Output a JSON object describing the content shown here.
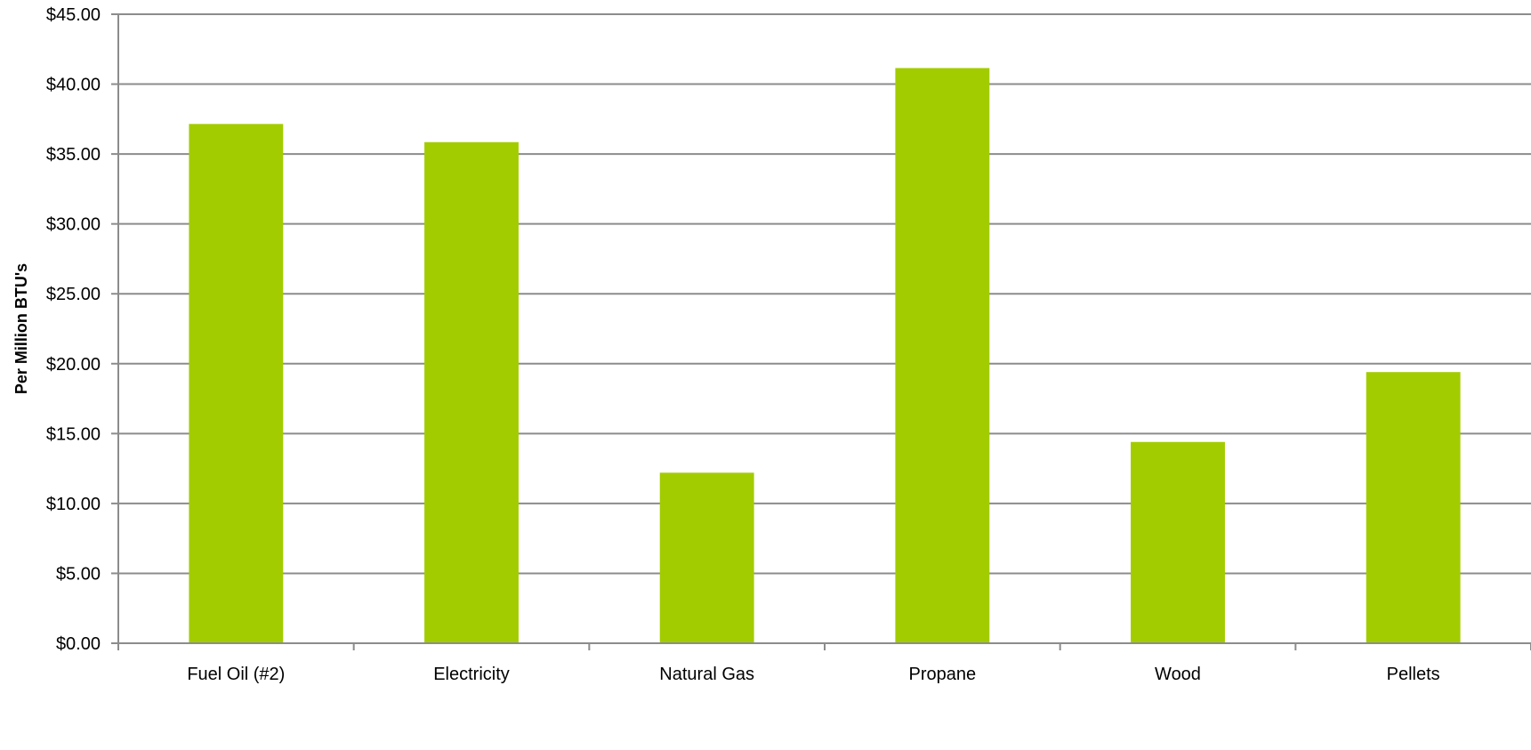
{
  "chart_data": {
    "type": "bar",
    "categories": [
      "Fuel Oil (#2)",
      "Electricity",
      "Natural Gas",
      "Propane",
      "Wood",
      "Pellets"
    ],
    "values": [
      37.15,
      35.85,
      12.2,
      41.15,
      14.4,
      19.4
    ],
    "ylabel": "Per Million BTU's",
    "xlabel": "",
    "ylim": [
      0,
      45
    ],
    "ytick_values": [
      0,
      5,
      10,
      15,
      20,
      25,
      30,
      35,
      40,
      45
    ],
    "ytick_labels": [
      "$0.00",
      "$5.00",
      "$10.00",
      "$15.00",
      "$20.00",
      "$25.00",
      "$30.00",
      "$35.00",
      "$40.00",
      "$45.00"
    ],
    "grid": true,
    "legend": "none",
    "bar_color": "#a3cc00",
    "grid_color": "#8c8c8c"
  }
}
